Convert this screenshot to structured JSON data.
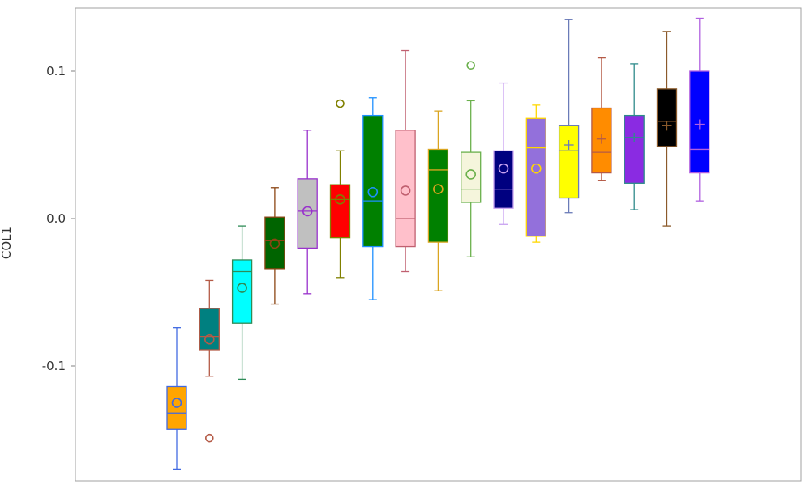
{
  "chart_data": {
    "type": "box",
    "title": "",
    "xlabel": "",
    "ylabel": "COL1",
    "ylim": [
      -0.18,
      0.14
    ],
    "y_ticks": [
      {
        "value": 0.1,
        "label": "0.1"
      },
      {
        "value": 0.0,
        "label": "0.0"
      },
      {
        "value": -0.1,
        "label": "-0.1"
      }
    ],
    "grid": false,
    "legend": "none",
    "boxes": [
      {
        "fill": "#FFA500",
        "stroke": "#4169E1",
        "min": -0.17,
        "q1": -0.143,
        "median": -0.132,
        "q3": -0.114,
        "max": -0.074,
        "mean": -0.125,
        "mean_marker": "circle",
        "outliers": []
      },
      {
        "fill": "#008080",
        "stroke": "#B45A46",
        "min": -0.107,
        "q1": -0.089,
        "median": -0.08,
        "q3": -0.061,
        "max": -0.042,
        "mean": -0.082,
        "mean_marker": "circle",
        "outliers": [
          -0.149
        ]
      },
      {
        "fill": "#00FFFF",
        "stroke": "#2E8B57",
        "min": -0.109,
        "q1": -0.071,
        "median": -0.036,
        "q3": -0.028,
        "max": -0.005,
        "mean": -0.047,
        "mean_marker": "circle",
        "outliers": []
      },
      {
        "fill": "#006400",
        "stroke": "#8B4513",
        "min": -0.058,
        "q1": -0.034,
        "median": -0.015,
        "q3": 0.001,
        "max": 0.021,
        "mean": -0.017,
        "mean_marker": "circle",
        "outliers": []
      },
      {
        "fill": "#C0C0C0",
        "stroke": "#9932CC",
        "min": -0.051,
        "q1": -0.02,
        "median": 0.005,
        "q3": 0.027,
        "max": 0.06,
        "mean": 0.005,
        "mean_marker": "circle",
        "outliers": []
      },
      {
        "fill": "#FF0000",
        "stroke": "#808000",
        "min": -0.04,
        "q1": -0.013,
        "median": 0.013,
        "q3": 0.023,
        "max": 0.046,
        "mean": 0.013,
        "mean_marker": "circle",
        "outliers": [
          0.078
        ]
      },
      {
        "fill": "#008000",
        "stroke": "#1E90FF",
        "min": -0.055,
        "q1": -0.019,
        "median": 0.012,
        "q3": 0.07,
        "max": 0.082,
        "mean": 0.018,
        "mean_marker": "circle",
        "outliers": []
      },
      {
        "fill": "#FFC0CB",
        "stroke": "#C06070",
        "min": -0.036,
        "q1": -0.019,
        "median": 0.0,
        "q3": 0.06,
        "max": 0.114,
        "mean": 0.019,
        "mean_marker": "circle",
        "outliers": []
      },
      {
        "fill": "#008000",
        "stroke": "#DAA520",
        "min": -0.049,
        "q1": -0.016,
        "median": 0.033,
        "q3": 0.047,
        "max": 0.073,
        "mean": 0.02,
        "mean_marker": "circle",
        "outliers": []
      },
      {
        "fill": "#F5F5DC",
        "stroke": "#6AB04C",
        "min": -0.026,
        "q1": 0.011,
        "median": 0.02,
        "q3": 0.045,
        "max": 0.08,
        "mean": 0.03,
        "mean_marker": "circle",
        "outliers": [
          0.104
        ]
      },
      {
        "fill": "#000080",
        "stroke": "#C8A2F0",
        "min": -0.004,
        "q1": 0.007,
        "median": 0.02,
        "q3": 0.046,
        "max": 0.092,
        "mean": 0.034,
        "mean_marker": "circle",
        "outliers": []
      },
      {
        "fill": "#9370DB",
        "stroke": "#FFD700",
        "min": -0.016,
        "q1": -0.012,
        "median": 0.048,
        "q3": 0.068,
        "max": 0.077,
        "mean": 0.034,
        "mean_marker": "circle",
        "outliers": []
      },
      {
        "fill": "#FFFF00",
        "stroke": "#6A7BB8",
        "min": 0.004,
        "q1": 0.014,
        "median": 0.046,
        "q3": 0.063,
        "max": 0.135,
        "mean": 0.05,
        "mean_marker": "plus",
        "outliers": []
      },
      {
        "fill": "#FF8C00",
        "stroke": "#B45A46",
        "min": 0.026,
        "q1": 0.031,
        "median": 0.045,
        "q3": 0.075,
        "max": 0.109,
        "mean": 0.054,
        "mean_marker": "plus",
        "outliers": []
      },
      {
        "fill": "#8A2BE2",
        "stroke": "#2E8B8B",
        "min": 0.006,
        "q1": 0.024,
        "median": 0.055,
        "q3": 0.07,
        "max": 0.105,
        "mean": 0.055,
        "mean_marker": "plus",
        "outliers": []
      },
      {
        "fill": "#000000",
        "stroke": "#8B5A2B",
        "min": -0.005,
        "q1": 0.049,
        "median": 0.066,
        "q3": 0.088,
        "max": 0.127,
        "mean": 0.063,
        "mean_marker": "plus",
        "outliers": []
      },
      {
        "fill": "#0000FF",
        "stroke": "#B060E0",
        "min": 0.012,
        "q1": 0.031,
        "median": 0.047,
        "q3": 0.1,
        "max": 0.136,
        "mean": 0.064,
        "mean_marker": "plus",
        "outliers": []
      }
    ]
  }
}
